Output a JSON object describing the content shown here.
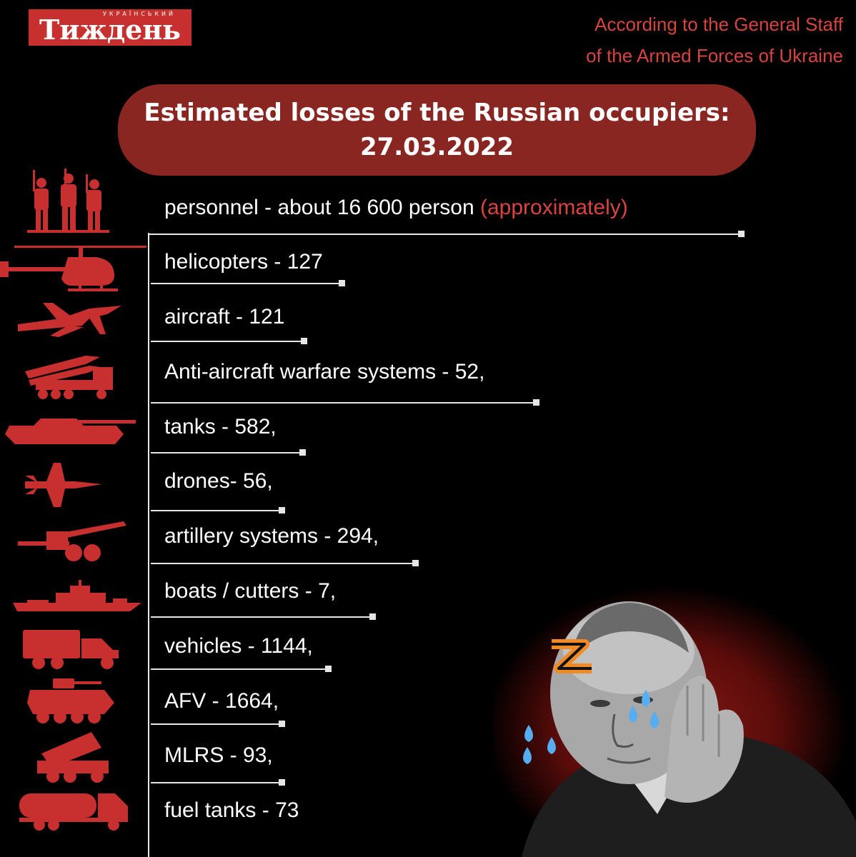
{
  "logo": {
    "small": "УКРАЇНСЬКИЙ",
    "big": "Тиждень"
  },
  "source": {
    "line1": "According to the General Staff",
    "line2": "of the Armed Forces of Ukraine"
  },
  "title": {
    "line1": "Estimated losses of the Russian occupiers:",
    "line2": "27.03.2022"
  },
  "colors": {
    "accent_red": "#d8443f",
    "title_bg": "#8a2622",
    "icon_red": "#c7302e"
  },
  "rows": [
    {
      "label": "personnel - about 16 600 person",
      "note": "(approximately)",
      "icon": "soldiers-icon"
    },
    {
      "label": "helicopters - 127",
      "icon": "helicopter-icon"
    },
    {
      "label": "aircraft - 121",
      "icon": "aircraft-icon"
    },
    {
      "label": "Anti-aircraft warfare systems - 52,",
      "icon": "anti-aircraft-icon"
    },
    {
      "label": "tanks - 582,",
      "icon": "tank-icon"
    },
    {
      "label": "drones- 56,",
      "icon": "drone-icon"
    },
    {
      "label": "artillery systems - 294,",
      "icon": "artillery-icon"
    },
    {
      "label": "boats / cutters - 7,",
      "icon": "boat-icon"
    },
    {
      "label": "vehicles - 1144,",
      "icon": "vehicle-icon"
    },
    {
      "label": "AFV - 1664,",
      "icon": "afv-icon"
    },
    {
      "label": "MLRS - 93,",
      "icon": "mlrs-icon"
    },
    {
      "label": "fuel tanks - 73",
      "icon": "fuel-tank-icon"
    }
  ]
}
